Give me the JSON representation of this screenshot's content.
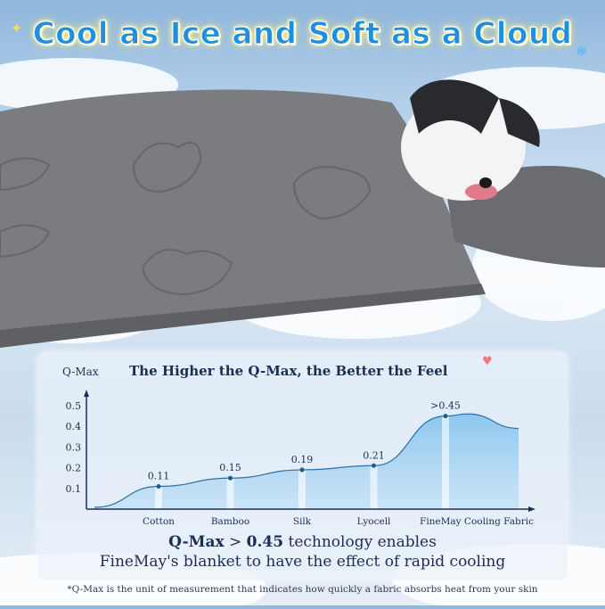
{
  "headline": "Cool as Ice and Soft as a Cloud",
  "chart_data": {
    "type": "area",
    "title": "The Higher the Q-Max, the Better the Feel",
    "ylabel": "Q-Max",
    "xlabel": "",
    "categories": [
      "Cotton",
      "Bamboo",
      "Silk",
      "Lyocell",
      "FineMay Cooling Fabric"
    ],
    "values": [
      0.11,
      0.15,
      0.19,
      0.21,
      0.45
    ],
    "data_labels": [
      "0.11",
      "0.15",
      "0.19",
      "0.21",
      ">0.45"
    ],
    "yticks": [
      "0.1",
      "0.2",
      "0.3",
      "0.4",
      "0.5"
    ],
    "ylim": [
      0,
      0.5
    ],
    "grid": false,
    "fill_color": "#8ec8f0",
    "line_color": "#2f6fa6"
  },
  "caption": {
    "bold_part": "Q-Max",
    "mid": " > ",
    "bold_value": "0.45",
    "rest": " technology enables",
    "line2": "FineMay's blanket to have the effect of rapid cooling"
  },
  "footnote": "*Q-Max is the unit of measurement that indicates how quickly a fabric absorbs heat from your skin"
}
